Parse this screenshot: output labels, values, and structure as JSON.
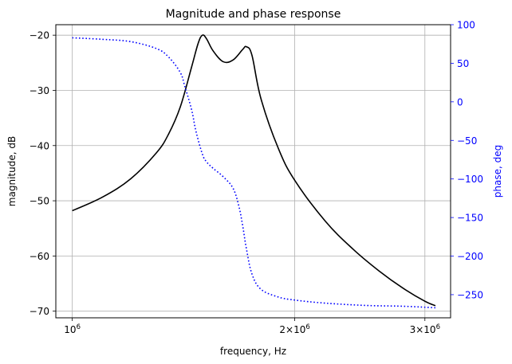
{
  "chart_data": {
    "type": "line",
    "title": "Magnitude and phase response",
    "xlabel": "frequency, Hz",
    "ylabel_left": "magnitude, dB",
    "ylabel_right": "phase, deg",
    "x_scale": "log",
    "xlim": [
      950000,
      3250000
    ],
    "ylim_left": [
      -71.2,
      -18.1
    ],
    "ylim_right": [
      -280,
      100
    ],
    "grid": true,
    "colors": {
      "magnitude": "#000000",
      "phase": "#0000ff",
      "grid": "#b0b0b0"
    },
    "x_ticks": [
      {
        "value": 1000000,
        "base": "10",
        "exp": "6",
        "coef": ""
      },
      {
        "value": 2000000,
        "base": "10",
        "exp": "6",
        "coef": "2"
      },
      {
        "value": 3000000,
        "base": "10",
        "exp": "6",
        "coef": "3"
      }
    ],
    "left_ticks": [
      {
        "value": -20,
        "label": "−20"
      },
      {
        "value": -30,
        "label": "−30"
      },
      {
        "value": -40,
        "label": "−40"
      },
      {
        "value": -50,
        "label": "−50"
      },
      {
        "value": -60,
        "label": "−60"
      },
      {
        "value": -70,
        "label": "−70"
      }
    ],
    "right_ticks": [
      {
        "value": 100,
        "label": "100"
      },
      {
        "value": 50,
        "label": "50"
      },
      {
        "value": 0,
        "label": "0"
      },
      {
        "value": -50,
        "label": "−50"
      },
      {
        "value": -100,
        "label": "−100"
      },
      {
        "value": -150,
        "label": "−150"
      },
      {
        "value": -200,
        "label": "−200"
      },
      {
        "value": -250,
        "label": "−250"
      }
    ],
    "series": [
      {
        "axis": "left",
        "style": "solid",
        "x": [
          1000000,
          1100000,
          1200000,
          1300000,
          1350000,
          1400000,
          1450000,
          1480000,
          1500000,
          1520000,
          1550000,
          1600000,
          1650000,
          1700000,
          1720000,
          1750000,
          1800000,
          1900000,
          2000000,
          2200000,
          2400000,
          2600000,
          2800000,
          3000000,
          3100000
        ],
        "values": [
          -51.8,
          -49.3,
          -46.0,
          -41.3,
          -37.9,
          -33.0,
          -25.8,
          -21.5,
          -20.0,
          -20.7,
          -22.8,
          -24.8,
          -24.5,
          -22.6,
          -22.1,
          -23.6,
          -31.5,
          -40.5,
          -46.3,
          -53.7,
          -58.8,
          -62.7,
          -65.8,
          -68.2,
          -69.0
        ]
      },
      {
        "axis": "right",
        "style": "dotted",
        "x": [
          1000000,
          1100000,
          1200000,
          1300000,
          1350000,
          1400000,
          1420000,
          1450000,
          1470000,
          1500000,
          1520000,
          1550000,
          1600000,
          1650000,
          1680000,
          1700000,
          1720000,
          1750000,
          1800000,
          1900000,
          2000000,
          2200000,
          2500000,
          2800000,
          3100000
        ],
        "values": [
          83,
          81,
          78,
          69,
          58,
          38,
          20,
          -10,
          -38,
          -68,
          -78,
          -86,
          -97,
          -112,
          -135,
          -160,
          -190,
          -223,
          -243,
          -253,
          -257,
          -261,
          -264,
          -265,
          -267
        ]
      }
    ]
  }
}
